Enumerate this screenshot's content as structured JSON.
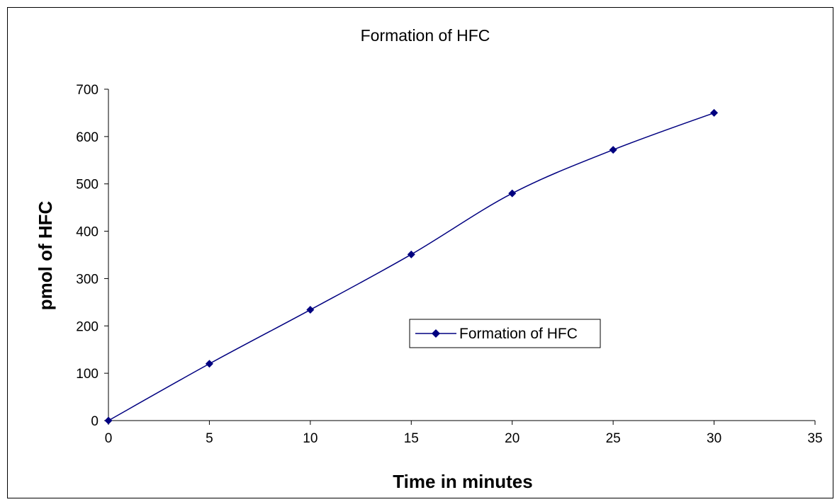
{
  "chart_data": {
    "type": "line",
    "title": "Formation of HFC",
    "xlabel": "Time in minutes",
    "ylabel": "pmol of HFC",
    "xlim": [
      0,
      35
    ],
    "ylim": [
      0,
      700
    ],
    "x_ticks": [
      "0",
      "5",
      "10",
      "15",
      "20",
      "25",
      "30",
      "35"
    ],
    "y_ticks": [
      "0",
      "100",
      "200",
      "300",
      "400",
      "500",
      "600",
      "700"
    ],
    "grid": false,
    "legend_position": "center",
    "series": [
      {
        "name": "Formation of HFC",
        "color": "#000080",
        "marker": "diamond",
        "x": [
          0,
          5,
          10,
          15,
          20,
          25,
          30
        ],
        "y": [
          0,
          120,
          234,
          351,
          480,
          572,
          650
        ]
      }
    ]
  }
}
